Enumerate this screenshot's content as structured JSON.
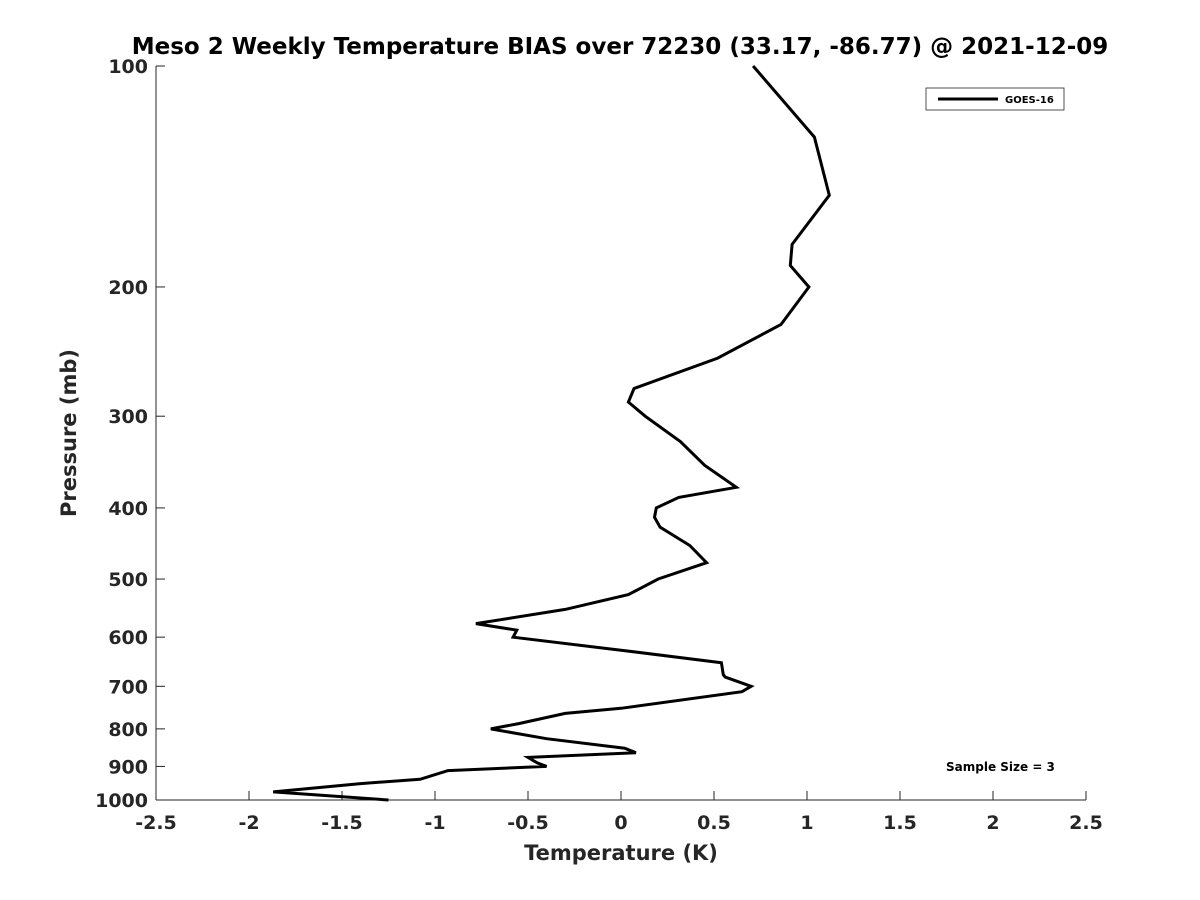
{
  "chart_data": {
    "type": "line",
    "title": "Meso 2 Weekly Temperature BIAS over 72230 (33.17, -86.77) @ 2021-12-09",
    "xlabel": "Temperature (K)",
    "ylabel": "Pressure (mb)",
    "xlim": [
      -2.5,
      2.5
    ],
    "ylim": [
      1000,
      100
    ],
    "yscale": "log",
    "y_reversed": true,
    "grid": false,
    "legend_position": "top-right",
    "x_ticks": [
      -2.5,
      -2,
      -1.5,
      -1,
      -0.5,
      0,
      0.5,
      1,
      1.5,
      2,
      2.5
    ],
    "x_tick_labels": [
      "-2.5",
      "-2",
      "-1.5",
      "-1",
      "-0.5",
      "0",
      "0.5",
      "1",
      "1.5",
      "2",
      "2.5"
    ],
    "y_ticks": [
      100,
      200,
      300,
      400,
      500,
      600,
      700,
      800,
      900,
      1000
    ],
    "y_tick_labels": [
      "100",
      "200",
      "300",
      "400",
      "500",
      "600",
      "700",
      "800",
      "900",
      "1000"
    ],
    "series": [
      {
        "name": "GOES-16",
        "color": "#000000",
        "points": [
          {
            "x": 0.71,
            "y": 100
          },
          {
            "x": 1.04,
            "y": 125
          },
          {
            "x": 1.12,
            "y": 150
          },
          {
            "x": 0.92,
            "y": 175
          },
          {
            "x": 0.91,
            "y": 187
          },
          {
            "x": 1.01,
            "y": 200
          },
          {
            "x": 0.86,
            "y": 225
          },
          {
            "x": 0.52,
            "y": 250
          },
          {
            "x": 0.07,
            "y": 275
          },
          {
            "x": 0.04,
            "y": 287
          },
          {
            "x": 0.13,
            "y": 300
          },
          {
            "x": 0.32,
            "y": 325
          },
          {
            "x": 0.45,
            "y": 350
          },
          {
            "x": 0.62,
            "y": 375
          },
          {
            "x": 0.31,
            "y": 387
          },
          {
            "x": 0.19,
            "y": 400
          },
          {
            "x": 0.18,
            "y": 412
          },
          {
            "x": 0.21,
            "y": 425
          },
          {
            "x": 0.37,
            "y": 450
          },
          {
            "x": 0.46,
            "y": 475
          },
          {
            "x": 0.2,
            "y": 500
          },
          {
            "x": 0.04,
            "y": 525
          },
          {
            "x": -0.3,
            "y": 550
          },
          {
            "x": -0.78,
            "y": 575
          },
          {
            "x": -0.56,
            "y": 587
          },
          {
            "x": -0.58,
            "y": 600
          },
          {
            "x": 0.0,
            "y": 625
          },
          {
            "x": 0.54,
            "y": 650
          },
          {
            "x": 0.55,
            "y": 675
          },
          {
            "x": 0.56,
            "y": 680
          },
          {
            "x": 0.7,
            "y": 700
          },
          {
            "x": 0.65,
            "y": 712
          },
          {
            "x": 0.0,
            "y": 750
          },
          {
            "x": -0.3,
            "y": 762
          },
          {
            "x": -0.55,
            "y": 787
          },
          {
            "x": -0.7,
            "y": 800
          },
          {
            "x": -0.4,
            "y": 825
          },
          {
            "x": 0.02,
            "y": 850
          },
          {
            "x": 0.08,
            "y": 862
          },
          {
            "x": -0.5,
            "y": 875
          },
          {
            "x": -0.45,
            "y": 890
          },
          {
            "x": -0.4,
            "y": 900
          },
          {
            "x": -0.93,
            "y": 912
          },
          {
            "x": -1.08,
            "y": 937
          },
          {
            "x": -1.4,
            "y": 950
          },
          {
            "x": -1.87,
            "y": 975
          },
          {
            "x": -1.25,
            "y": 1000
          }
        ]
      }
    ],
    "annotations": [
      "Sample Size = 3"
    ]
  }
}
